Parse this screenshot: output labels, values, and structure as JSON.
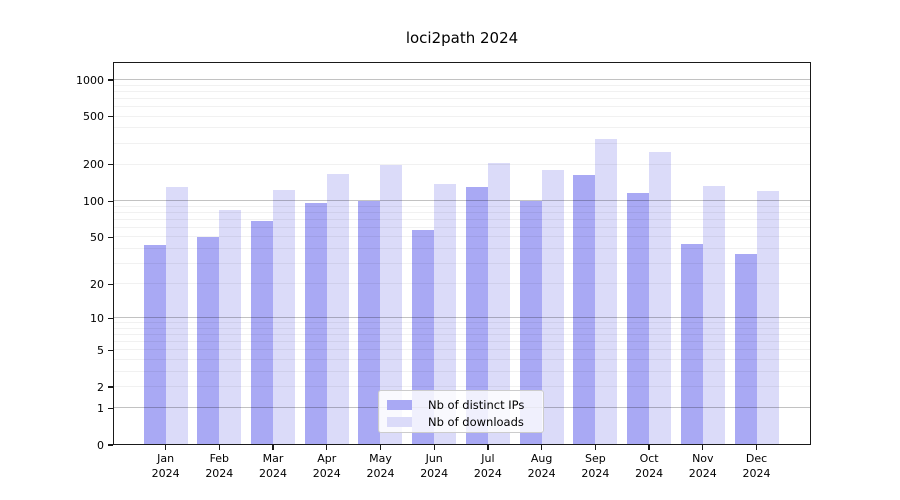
{
  "title": "loci2path 2024",
  "chart_data": {
    "type": "bar",
    "title": "loci2path 2024",
    "categories": [
      "Jan 2024",
      "Feb 2024",
      "Mar 2024",
      "Apr 2024",
      "May 2024",
      "Jun 2024",
      "Jul 2024",
      "Aug 2024",
      "Sep 2024",
      "Oct 2024",
      "Nov 2024",
      "Dec 2024"
    ],
    "series": [
      {
        "name": "Nb of distinct IPs",
        "color": "#a9a9f4",
        "values": [
          43,
          50,
          69,
          96,
          101,
          58,
          130,
          101,
          165,
          118,
          44,
          36
        ]
      },
      {
        "name": "Nb of downloads",
        "color": "#dbdbf9",
        "values": [
          131,
          84,
          124,
          167,
          201,
          139,
          208,
          181,
          328,
          254,
          134,
          121
        ]
      }
    ],
    "xlabel": "",
    "ylabel": "",
    "yscale": "log10(value+1)",
    "yticks": [
      1000,
      500,
      200,
      100,
      50,
      20,
      10,
      5,
      2,
      1,
      0
    ],
    "ylim": [
      0,
      1400
    ],
    "grid": "horizontal minor+major gridlines drawn over bars",
    "legend_position": "lower center"
  },
  "style": {
    "background": "#ffffff",
    "spine_color": "#1a1a1a",
    "grid_minor_color": "rgba(0,0,0,0.055)",
    "grid_major_color": "rgba(0,0,0,0.24)",
    "legend_border_color": "#cccccc"
  }
}
